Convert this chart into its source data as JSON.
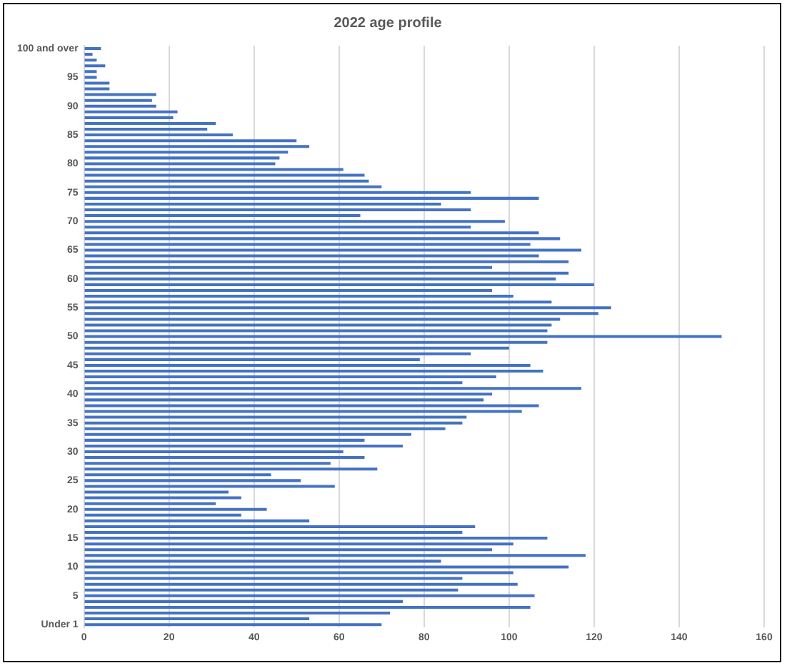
{
  "chart_data": {
    "type": "bar",
    "orientation": "horizontal",
    "title": "2022 age profile",
    "categories": [
      "100 and over",
      null,
      null,
      null,
      null,
      "95",
      null,
      null,
      null,
      null,
      "90",
      null,
      null,
      null,
      null,
      "85",
      null,
      null,
      null,
      null,
      "80",
      null,
      null,
      null,
      null,
      "75",
      null,
      null,
      null,
      null,
      "70",
      null,
      null,
      null,
      null,
      "65",
      null,
      null,
      null,
      null,
      "60",
      null,
      null,
      null,
      null,
      "55",
      null,
      null,
      null,
      null,
      "50",
      null,
      null,
      null,
      null,
      "45",
      null,
      null,
      null,
      null,
      "40",
      null,
      null,
      null,
      null,
      "35",
      null,
      null,
      null,
      null,
      "30",
      null,
      null,
      null,
      null,
      "25",
      null,
      null,
      null,
      null,
      "20",
      null,
      null,
      null,
      null,
      "15",
      null,
      null,
      null,
      null,
      "10",
      null,
      null,
      null,
      null,
      "5",
      null,
      null,
      null,
      null,
      "Under 1"
    ],
    "values": [
      4,
      2,
      3,
      5,
      3,
      3,
      6,
      6,
      17,
      16,
      17,
      22,
      21,
      31,
      29,
      35,
      50,
      53,
      48,
      46,
      45,
      61,
      66,
      67,
      70,
      91,
      107,
      84,
      91,
      65,
      99,
      91,
      107,
      112,
      105,
      117,
      107,
      114,
      96,
      114,
      111,
      120,
      96,
      101,
      110,
      124,
      121,
      112,
      110,
      109,
      150,
      109,
      100,
      91,
      79,
      105,
      108,
      97,
      89,
      117,
      96,
      94,
      107,
      103,
      90,
      89,
      85,
      77,
      66,
      75,
      61,
      66,
      58,
      69,
      44,
      51,
      59,
      34,
      37,
      31,
      43,
      37,
      53,
      92,
      89,
      109,
      101,
      96,
      118,
      84,
      114,
      101,
      89,
      102,
      88,
      106,
      75,
      105,
      72,
      53,
      70
    ],
    "color": "#4472c4",
    "xlim": [
      0,
      160
    ],
    "xticks": [
      0,
      20,
      40,
      60,
      80,
      100,
      120,
      140,
      160
    ],
    "grid": "x"
  }
}
